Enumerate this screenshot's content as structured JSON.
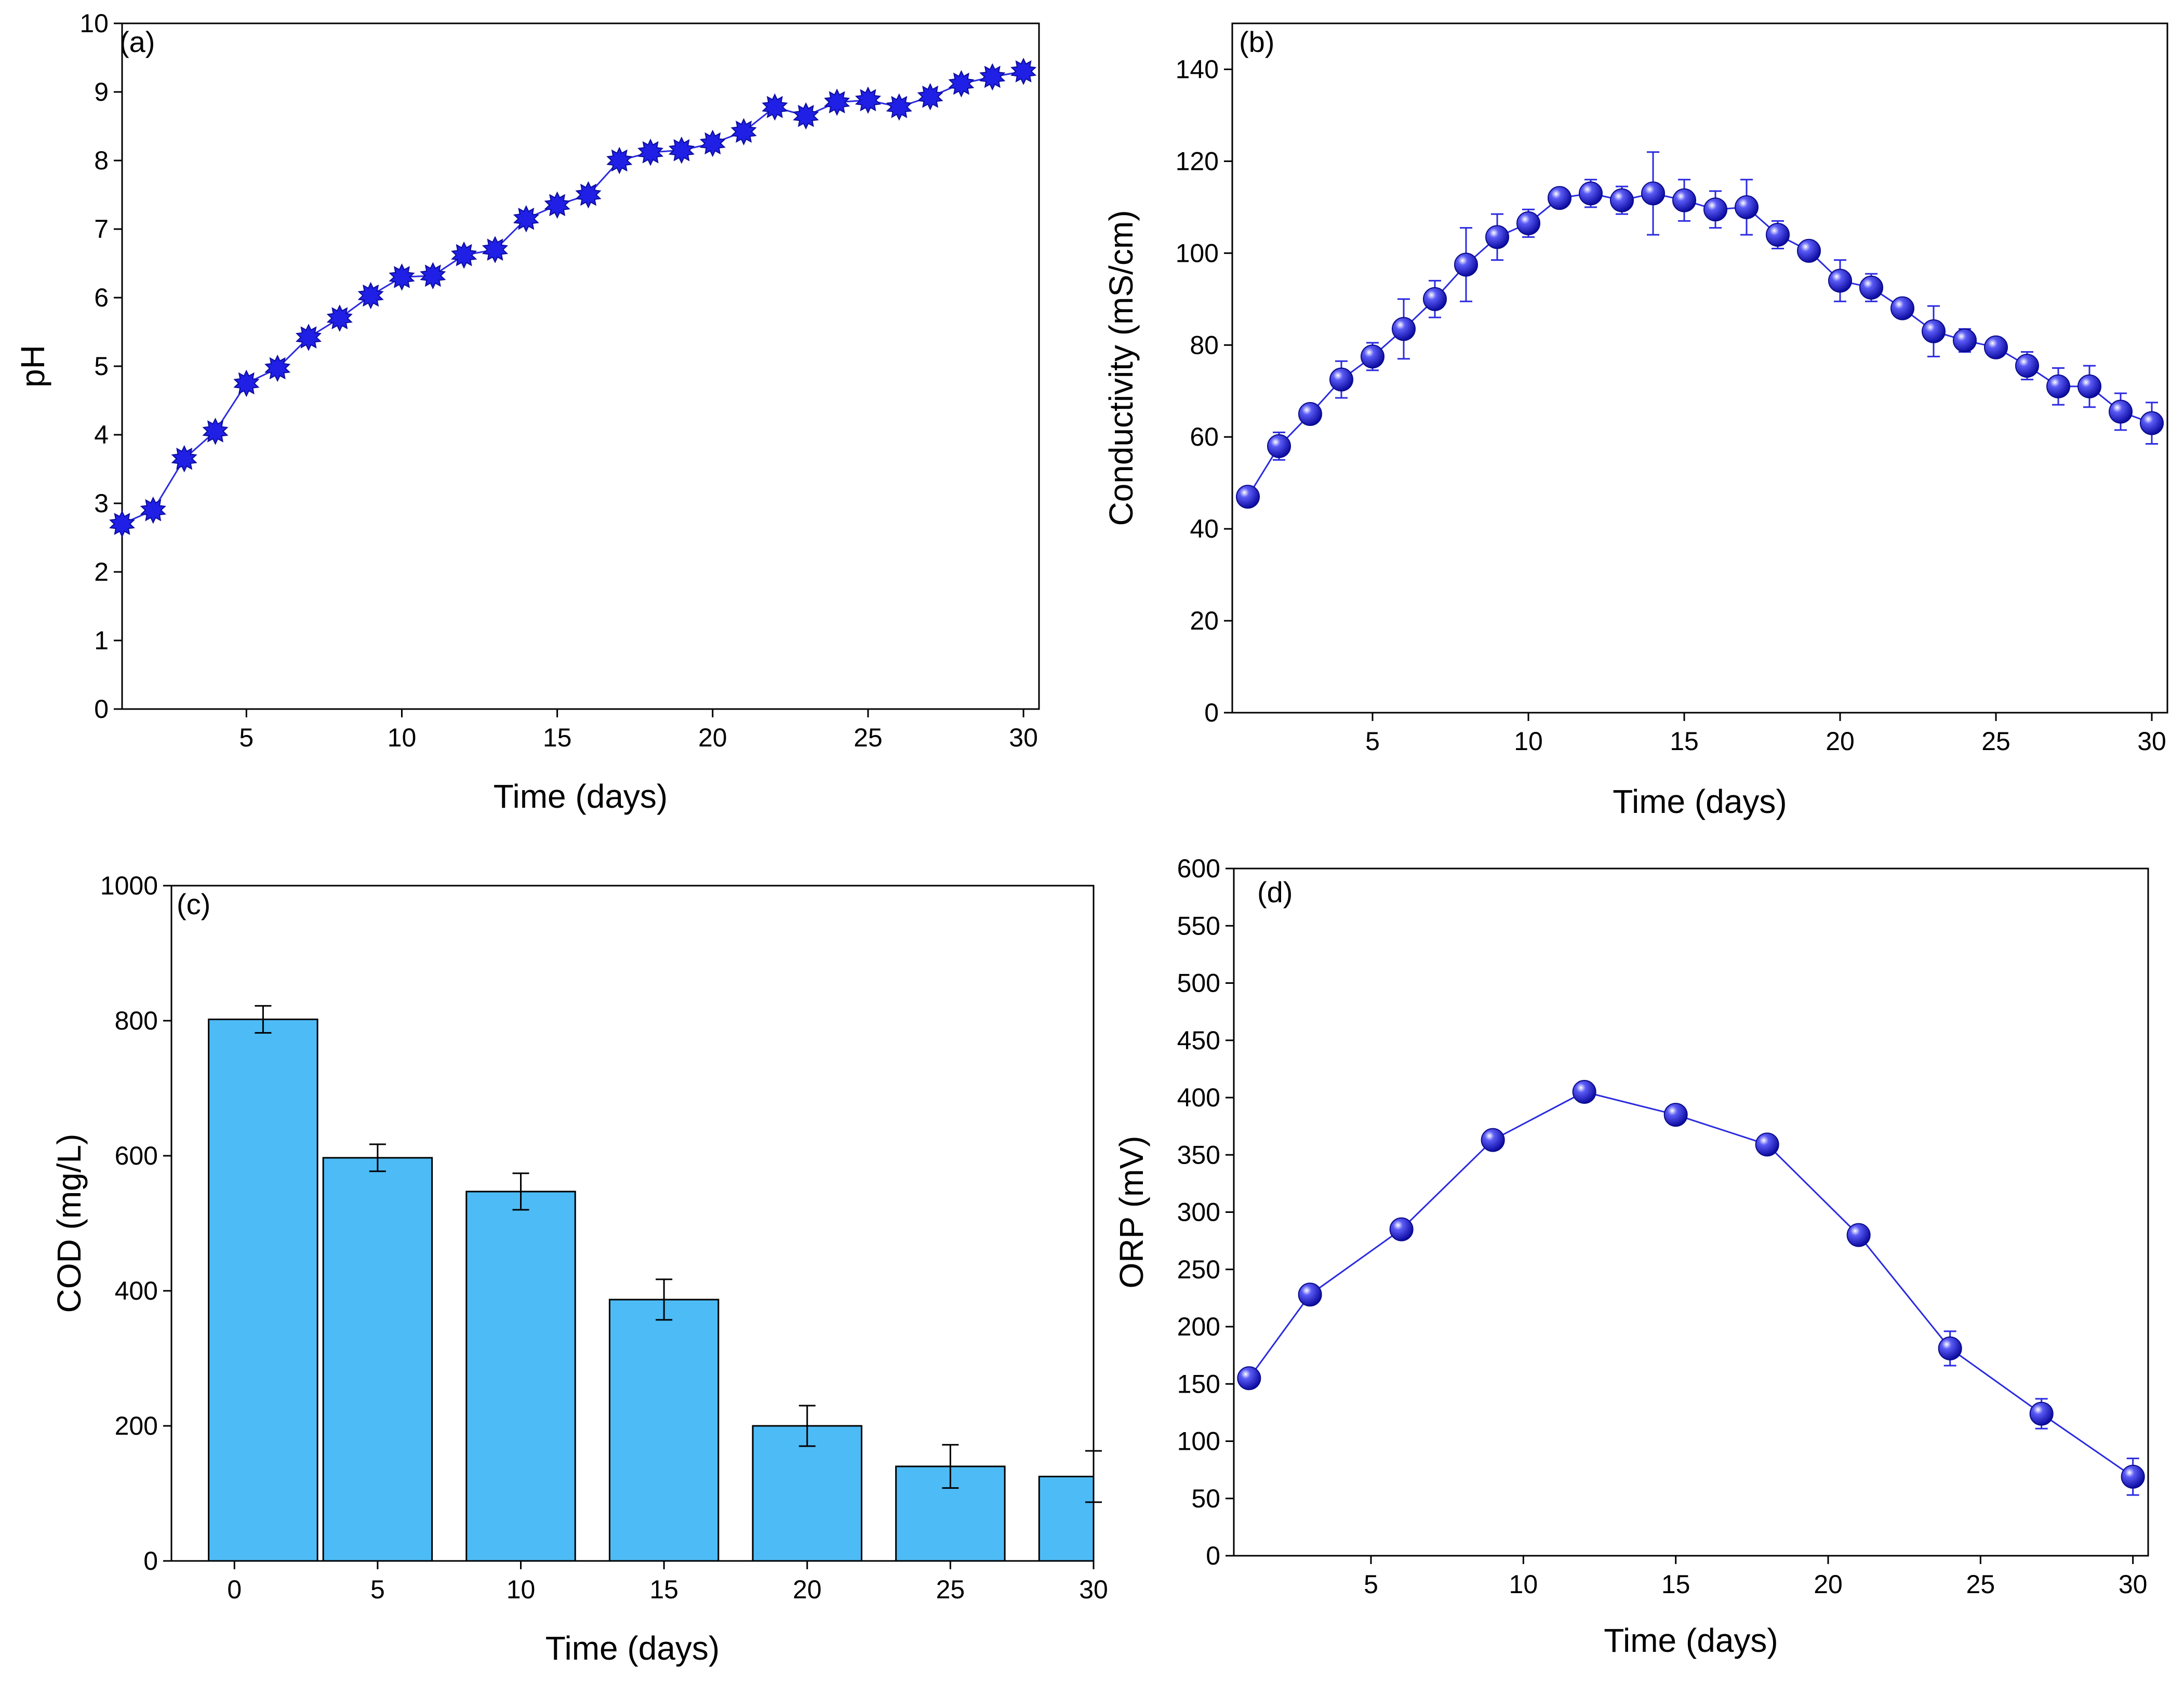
{
  "figure": {
    "panel_count": 4
  },
  "colors": {
    "marker": "#1f1fe6",
    "line": "#2a2ae0",
    "bar": "#4dbbf5",
    "axis": "#000000"
  },
  "chart_data": [
    {
      "id": "a",
      "type": "line",
      "label": "(a)",
      "title": "",
      "xlabel": "Time (days)",
      "ylabel": "pH",
      "xlim": [
        1,
        30.5
      ],
      "ylim": [
        0,
        10
      ],
      "xticks": [
        5,
        10,
        15,
        20,
        25,
        30
      ],
      "yticks": [
        0,
        1,
        2,
        3,
        4,
        5,
        6,
        7,
        8,
        9,
        10
      ],
      "marker": "star",
      "series": [
        {
          "name": "pH",
          "x": [
            1,
            2,
            3,
            4,
            5,
            6,
            7,
            8,
            9,
            10,
            11,
            12,
            13,
            14,
            15,
            16,
            17,
            18,
            19,
            20,
            21,
            22,
            23,
            24,
            25,
            26,
            27,
            28,
            29,
            30
          ],
          "y": [
            2.7,
            2.9,
            3.65,
            4.05,
            4.75,
            4.97,
            5.42,
            5.7,
            6.03,
            6.3,
            6.32,
            6.62,
            6.7,
            7.15,
            7.35,
            7.5,
            8.0,
            8.12,
            8.15,
            8.25,
            8.42,
            8.78,
            8.65,
            8.85,
            8.88,
            8.78,
            8.93,
            9.12,
            9.22,
            9.3
          ]
        }
      ]
    },
    {
      "id": "b",
      "type": "line",
      "label": "(b)",
      "title": "",
      "xlabel": "Time (days)",
      "ylabel": "Conductivity (mS/cm)",
      "xlim": [
        0.5,
        30.5
      ],
      "ylim": [
        0,
        150
      ],
      "xticks": [
        5,
        10,
        15,
        20,
        25,
        30
      ],
      "yticks": [
        0,
        20,
        40,
        60,
        80,
        100,
        120,
        140
      ],
      "marker": "sphere",
      "series": [
        {
          "name": "Conductivity",
          "x": [
            1,
            2,
            3,
            4,
            5,
            6,
            7,
            8,
            9,
            10,
            11,
            12,
            13,
            14,
            15,
            16,
            17,
            18,
            19,
            20,
            21,
            22,
            23,
            24,
            25,
            26,
            27,
            28,
            29,
            30
          ],
          "y": [
            47,
            58,
            65,
            72.5,
            77.5,
            83.5,
            90,
            97.5,
            103.5,
            106.5,
            112,
            113,
            111.5,
            113,
            111.5,
            109.5,
            110,
            104,
            100.5,
            94,
            92.5,
            88,
            83,
            81,
            79.5,
            75.5,
            71,
            71,
            65.5,
            63
          ],
          "err": [
            1.5,
            3,
            2,
            4,
            3,
            6.5,
            4,
            8,
            5,
            3,
            2,
            3,
            3,
            9,
            4.5,
            4,
            6,
            3,
            1.5,
            4.5,
            3,
            1.5,
            5.5,
            2.5,
            1.5,
            3,
            4,
            4.5,
            4,
            4.5
          ]
        }
      ]
    },
    {
      "id": "c",
      "type": "bar",
      "label": "(c)",
      "title": "",
      "xlabel": "Time (days)",
      "ylabel": "COD (mg/L)",
      "xlim": [
        -2.2,
        30
      ],
      "ylim": [
        0,
        1000
      ],
      "xticks": [
        0,
        5,
        10,
        15,
        20,
        25,
        30
      ],
      "yticks": [
        0,
        200,
        400,
        600,
        800,
        1000
      ],
      "bar_width_days": 3.8,
      "categories": [
        0,
        5,
        10,
        15,
        20,
        25,
        30
      ],
      "bar_centers": [
        1,
        5,
        10,
        15,
        20,
        25,
        30
      ],
      "values": [
        802,
        597,
        547,
        387,
        200,
        140,
        125
      ],
      "err": [
        20,
        20,
        27,
        30,
        30,
        32,
        38
      ]
    },
    {
      "id": "d",
      "type": "line",
      "label": "(d)",
      "title": "",
      "xlabel": "Time (days)",
      "ylabel": "ORP (mV)",
      "xlim": [
        0.5,
        30.5
      ],
      "ylim": [
        0,
        600
      ],
      "xticks": [
        5,
        10,
        15,
        20,
        25,
        30
      ],
      "yticks": [
        0,
        50,
        100,
        150,
        200,
        250,
        300,
        350,
        400,
        450,
        500,
        550,
        600
      ],
      "marker": "sphere",
      "series": [
        {
          "name": "ORP",
          "x": [
            1,
            3,
            6,
            9,
            12,
            15,
            18,
            21,
            24,
            27,
            30
          ],
          "y": [
            155,
            228,
            285,
            363,
            405,
            385,
            359,
            280,
            181,
            124,
            69
          ],
          "err": [
            4,
            4,
            4,
            4,
            5,
            4,
            4,
            5,
            15,
            13,
            16
          ]
        }
      ]
    }
  ]
}
